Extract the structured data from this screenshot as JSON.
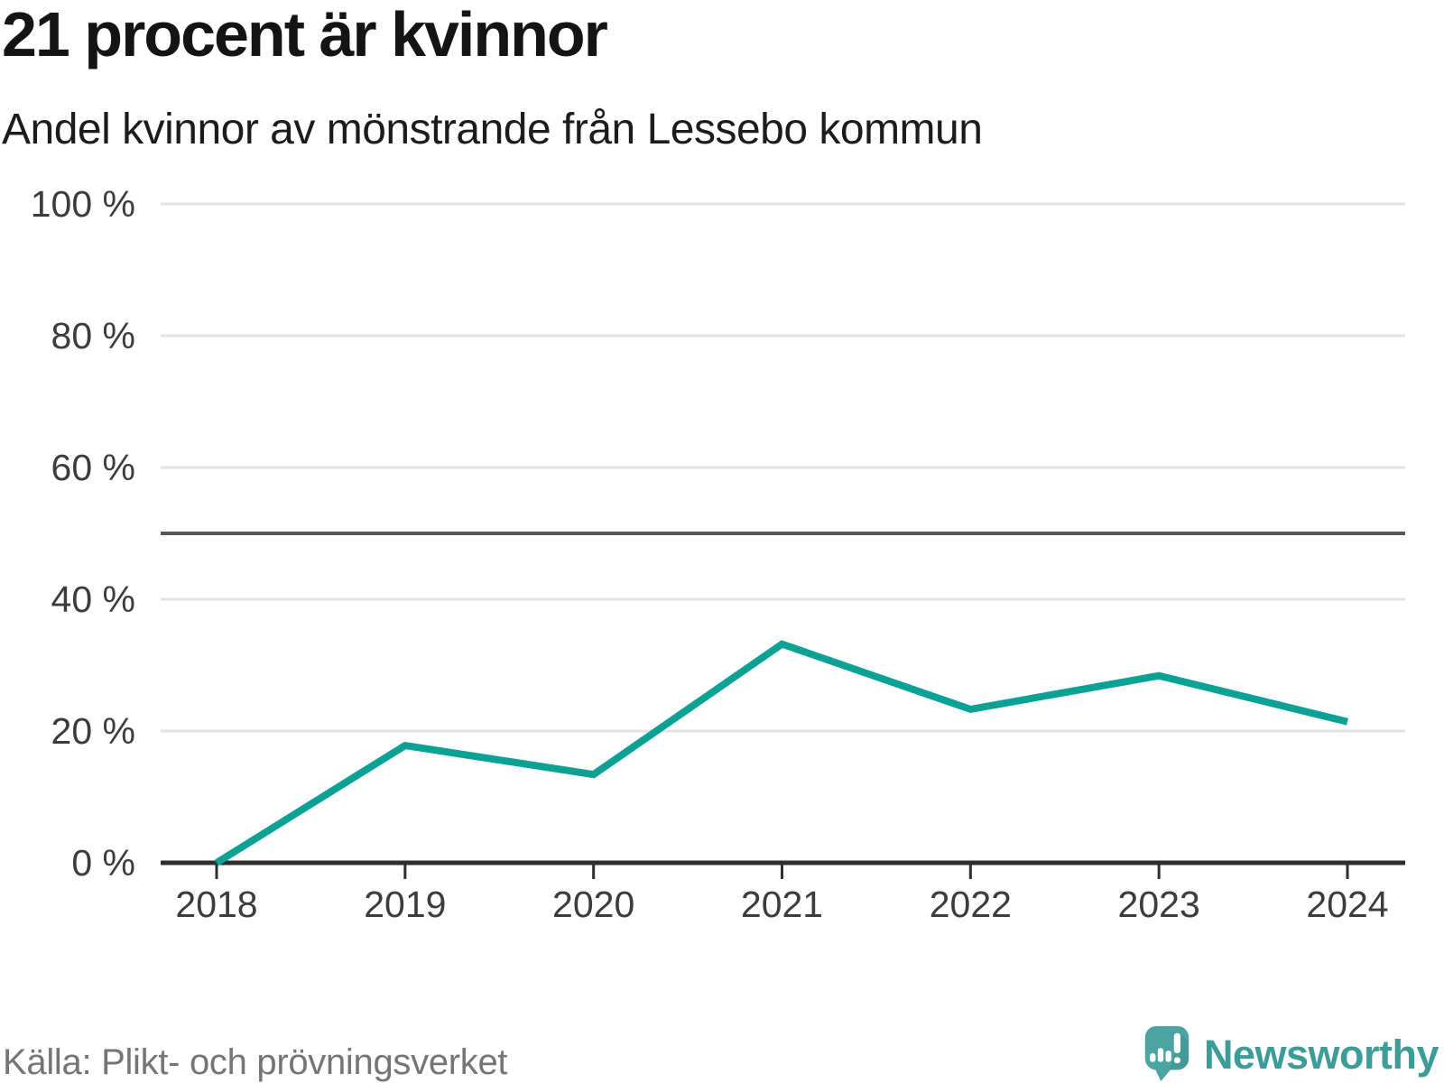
{
  "chart_data": {
    "type": "line",
    "title": "21 procent är kvinnor",
    "subtitle": "Andel kvinnor av mönstrande från Lessebo kommun",
    "series_name": "Andel kvinnor",
    "categories": [
      "2018",
      "2019",
      "2020",
      "2021",
      "2022",
      "2023",
      "2024"
    ],
    "values": [
      0,
      17.8,
      13.4,
      33.2,
      23.3,
      28.4,
      21.4
    ],
    "unit": "%",
    "xlabel": "",
    "ylabel": "",
    "ylim": [
      0,
      100
    ],
    "yticks": [
      0,
      20,
      40,
      60,
      80,
      100
    ],
    "ytick_suffix": " %",
    "reference_line": 50,
    "grid": true,
    "legend": "none",
    "source": "Källa: Plikt- och prövningsverket",
    "colors": {
      "line": "#0ba295",
      "grid": "#e2e2e2",
      "reference": "#56565e",
      "axis": "#2e2e2e",
      "tick_label": "#3c3c3c"
    }
  },
  "branding": {
    "name": "Newsworthy",
    "logo_color": "#4ba4a1",
    "logo_shade": "#3f918e",
    "text_color": "#3b9c98"
  }
}
